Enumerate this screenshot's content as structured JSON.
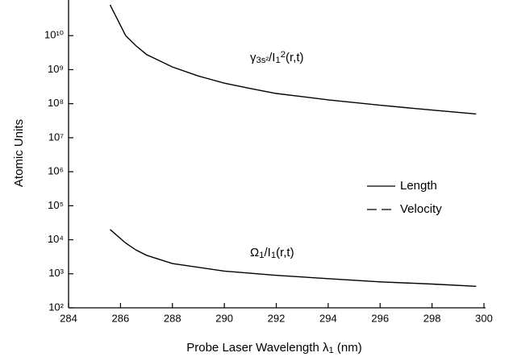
{
  "chart_data": {
    "type": "line",
    "x_label": [
      {
        "text": "Probe Laser Wavelength λ",
        "baseline": "normal"
      },
      {
        "text": "1",
        "baseline": "sub"
      },
      {
        "text": " (nm)",
        "baseline": "normal"
      }
    ],
    "y_label": "Atomic Units",
    "log_y": true,
    "xlim": [
      284,
      300
    ],
    "xticks": [
      284,
      286,
      288,
      290,
      292,
      294,
      296,
      298,
      300
    ],
    "ylim": [
      100,
      100000000000
    ],
    "yticks": [
      {
        "value": 100,
        "label": "10²"
      },
      {
        "value": 1000,
        "label": "10³"
      },
      {
        "value": 10000,
        "label": "10⁴"
      },
      {
        "value": 100000,
        "label": "10⁵"
      },
      {
        "value": 1000000,
        "label": "10⁶"
      },
      {
        "value": 10000000,
        "label": "10⁷"
      },
      {
        "value": 100000000,
        "label": "10⁸"
      },
      {
        "value": 1000000000,
        "label": "10⁹"
      },
      {
        "value": 10000000000,
        "label": "10¹⁰"
      }
    ],
    "series": [
      {
        "color": "#000000",
        "x": [
          285.6,
          286.2,
          286.6,
          287,
          288,
          289,
          290,
          291,
          292,
          294,
          296,
          298,
          299.7
        ],
        "values": [
          80000000000,
          10000000000,
          5000000000,
          2800000000,
          1200000000,
          650000000,
          400000000,
          280000000,
          200000000,
          130000000,
          90000000,
          65000000,
          50000000
        ]
      },
      {
        "color": "#000000",
        "x": [
          285.6,
          286.2,
          286.6,
          287,
          288,
          290,
          292,
          294,
          296,
          298,
          299.7
        ],
        "values": [
          20000,
          8000,
          5000,
          3500,
          2000,
          1200,
          900,
          720,
          580,
          500,
          430
        ]
      }
    ],
    "annotations": [
      [
        {
          "text": "γ",
          "baseline": "normal"
        },
        {
          "text": "3s²",
          "baseline": "sub"
        },
        {
          "text": "/I",
          "baseline": "normal"
        },
        {
          "text": "1",
          "baseline": "sub"
        },
        {
          "text": "2",
          "baseline": "super"
        },
        {
          "text": "(r,t)",
          "baseline": "normal"
        }
      ],
      [
        {
          "text": "Ω",
          "baseline": "normal"
        },
        {
          "text": "1",
          "baseline": "sub"
        },
        {
          "text": "/I",
          "baseline": "normal"
        },
        {
          "text": "1",
          "baseline": "sub"
        },
        {
          "text": "(r,t)",
          "baseline": "normal"
        }
      ]
    ],
    "legend": [
      {
        "name": "Length",
        "style": "solid"
      },
      {
        "name": "Velocity",
        "style": "dashed"
      }
    ]
  }
}
